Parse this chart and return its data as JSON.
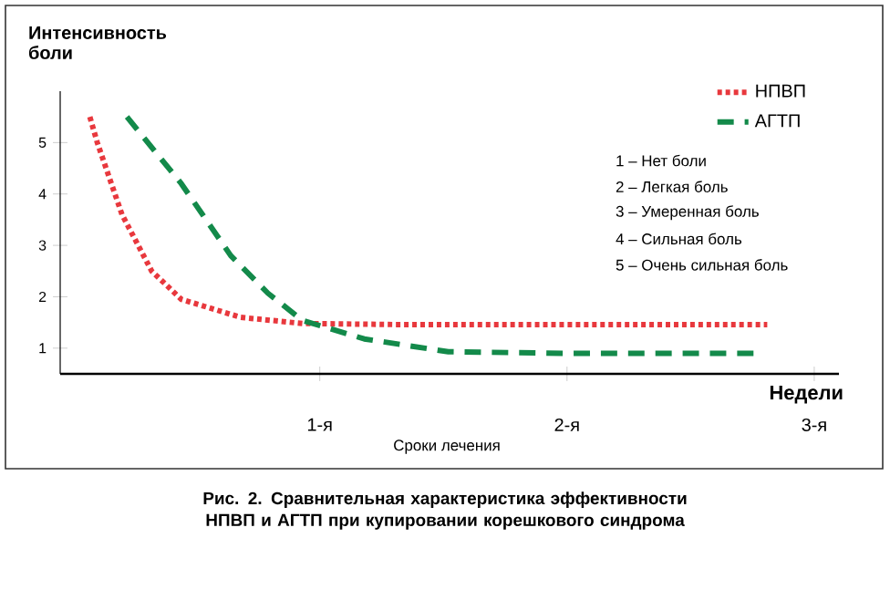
{
  "chart_data": {
    "type": "line",
    "ylabel": "Интенсивность боли",
    "xlabel": "Сроки лечения",
    "annotations": [
      "Недели",
      "1 – Нет боли",
      "2 – Легкая боль",
      "3 – Умеренная боль",
      "4 – Сильная боль",
      "5 – Очень сильная боль",
      "Рис. 2. Сравнительная характеристика эффективности НПВП и АГТП при купировании корешкового синдрома"
    ],
    "xlim": [
      -0.05,
      3.1
    ],
    "ylim": [
      0.5,
      6
    ],
    "xticks": [
      {
        "value": 1,
        "label": "1-я"
      },
      {
        "value": 2,
        "label": "2-я"
      },
      {
        "value": 3,
        "label": "3-я"
      }
    ],
    "yticks": [
      1,
      2,
      3,
      4,
      5
    ],
    "grid": false,
    "legend": "top right",
    "marker": "none",
    "series": [
      {
        "name": "НПВП",
        "color": "#e8383d",
        "line_style": "dotted",
        "x": [
          0.07,
          0.1,
          0.2,
          0.32,
          0.44,
          0.68,
          0.93,
          1.3,
          2.0,
          2.81
        ],
        "values": [
          5.5,
          5.0,
          3.6,
          2.5,
          1.95,
          1.6,
          1.48,
          1.46,
          1.46,
          1.46
        ]
      },
      {
        "name": "АГТП",
        "color": "#138a4a",
        "line_style": "dashed",
        "x": [
          0.22,
          0.44,
          0.64,
          0.79,
          0.93,
          1.18,
          1.52,
          2.0,
          2.76
        ],
        "values": [
          5.5,
          4.2,
          2.8,
          2.07,
          1.54,
          1.18,
          0.93,
          0.9,
          0.9
        ]
      }
    ]
  }
}
